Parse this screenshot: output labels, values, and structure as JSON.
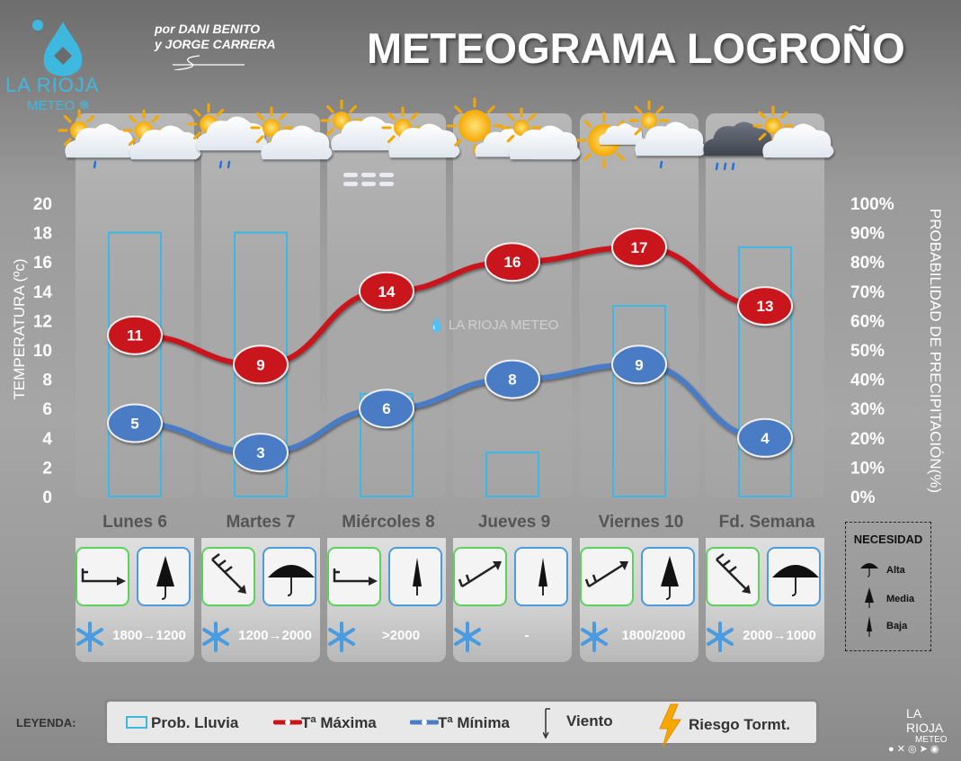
{
  "header": {
    "title": "METEOGRAMA LOGROÑO",
    "authors_line1": "por DANI BENITO",
    "authors_line2": "y JORGE CARRERA",
    "logo_name": "LA RIOJA",
    "logo_sub": "METEO"
  },
  "watermark": "LA RIOJA METEO",
  "chart_data": {
    "type": "line",
    "categories": [
      "Lunes 6",
      "Martes 7",
      "Miércoles 8",
      "Jueves 9",
      "Viernes 10",
      "Fd. Semana"
    ],
    "series": [
      {
        "name": "Tª Máxima",
        "values": [
          11,
          9,
          14,
          16,
          17,
          13
        ],
        "color": "#c9141c",
        "axis": "left"
      },
      {
        "name": "Tª Mínima",
        "values": [
          5,
          3,
          6,
          8,
          9,
          4
        ],
        "color": "#4a7cc4",
        "axis": "left"
      },
      {
        "name": "Prob. Lluvia",
        "type": "bar",
        "values": [
          90,
          90,
          35,
          15,
          65,
          85
        ],
        "color": "#3cb7e6",
        "axis": "right"
      }
    ],
    "ylabel": "TEMPERATURA (ºc)",
    "ylabel_right": "PROBABILIDAD DE PRECIPITACIÓN(%)",
    "ylim": [
      0,
      20
    ],
    "ylim_right": [
      0,
      100
    ],
    "y_ticks": [
      "0",
      "2",
      "4",
      "6",
      "8",
      "10",
      "12",
      "14",
      "16",
      "18",
      "20"
    ],
    "y_ticks_right": [
      "0%",
      "10%",
      "20%",
      "30%",
      "40%",
      "50%",
      "60%",
      "70%",
      "80%",
      "90%",
      "100%"
    ],
    "grid": false,
    "legend": "bottom"
  },
  "days": [
    {
      "label": "Lunes 6",
      "wind_icon": "wind-east-icon",
      "umbrella": "umbrella-closed-medium-icon",
      "snow": "1800→1200"
    },
    {
      "label": "Martes 7",
      "wind_icon": "wind-southeast-icon",
      "umbrella": "umbrella-open-high-icon",
      "snow": "1200→2000"
    },
    {
      "label": "Miércoles 8",
      "wind_icon": "wind-east-icon",
      "umbrella": "umbrella-closed-low-icon",
      "snow": ">2000"
    },
    {
      "label": "Jueves 9",
      "wind_icon": "wind-northeast-icon",
      "umbrella": "umbrella-closed-low-icon",
      "snow": "-"
    },
    {
      "label": "Viernes 10",
      "wind_icon": "wind-northeast-icon",
      "umbrella": "umbrella-closed-medium-icon",
      "snow": "1800/2000"
    },
    {
      "label": "Fd. Semana",
      "wind_icon": "wind-southeast-icon",
      "umbrella": "umbrella-open-high-icon",
      "snow": "2000→1000"
    }
  ],
  "necesidad": {
    "title": "NECESIDAD",
    "items": [
      "Alta",
      "Media",
      "Baja"
    ]
  },
  "legend": {
    "title": "LEYENDA:",
    "rain": "Prob. Lluvia",
    "max": "Tª Máxima",
    "min": "Tª Mínima",
    "wind": "Viento",
    "storm": "Riesgo Tormt."
  },
  "footer": {
    "logo_name": "LA RIOJA",
    "logo_sub": "METEO"
  },
  "colors": {
    "max": "#c9141c",
    "min": "#4a7cc4",
    "rain": "#3cb7e6",
    "wind_border": "#5bd35b",
    "umbrella_border": "#4a9bdf"
  }
}
